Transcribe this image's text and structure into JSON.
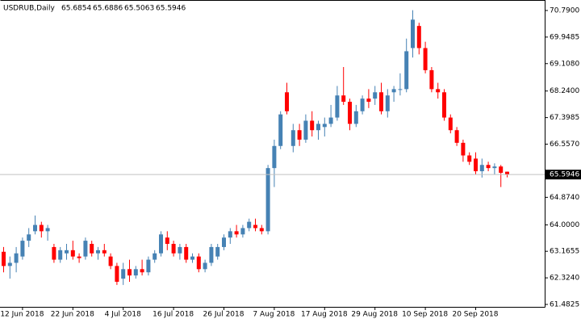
{
  "chart_data": {
    "type": "candlestick",
    "title": "USDRUB,Daily",
    "categories": [
      null,
      null,
      null,
      "12 Jun 2018",
      null,
      null,
      null,
      null,
      null,
      null,
      null,
      "22 Jun 2018",
      null,
      null,
      null,
      null,
      null,
      null,
      null,
      "4 Jul 2018",
      null,
      null,
      null,
      null,
      null,
      null,
      null,
      "16 Jul 2018",
      null,
      null,
      null,
      null,
      null,
      null,
      null,
      "26 Jul 2018",
      null,
      null,
      null,
      null,
      null,
      null,
      null,
      "7 Aug 2018",
      null,
      null,
      null,
      null,
      null,
      null,
      null,
      "17 Aug 2018",
      null,
      null,
      null,
      null,
      null,
      null,
      null,
      "29 Aug 2018",
      null,
      null,
      null,
      null,
      null,
      null,
      null,
      "10 Sep 2018",
      null,
      null,
      null,
      null,
      null,
      null,
      null,
      "20 Sep 2018",
      null,
      null,
      null,
      null,
      null
    ],
    "open": [
      63.15,
      62.7,
      62.8,
      63.0,
      63.5,
      63.8,
      64.0,
      63.8,
      63.3,
      62.9,
      63.1,
      63.2,
      63.0,
      63.0,
      63.4,
      63.1,
      63.2,
      63.0,
      62.7,
      62.3,
      62.6,
      62.4,
      62.6,
      62.5,
      62.9,
      63.1,
      63.6,
      63.4,
      63.1,
      63.3,
      62.9,
      63.0,
      62.6,
      62.8,
      63.0,
      63.3,
      63.6,
      63.8,
      63.7,
      63.9,
      64.0,
      63.9,
      63.8,
      65.8,
      66.5,
      68.2,
      66.5,
      67.0,
      66.7,
      67.3,
      67.0,
      67.1,
      67.2,
      67.4,
      68.1,
      67.9,
      67.2,
      67.6,
      68.0,
      68.0,
      68.2,
      67.6,
      68.2,
      68.3,
      68.3,
      69.6,
      70.3,
      69.6,
      68.9,
      68.3,
      68.2,
      67.4,
      67.0,
      66.6,
      66.2,
      66.1,
      65.7,
      65.9,
      65.8,
      65.85,
      65.6854
    ],
    "high": [
      63.3,
      63.0,
      63.3,
      63.6,
      63.9,
      64.3,
      64.1,
      64.0,
      63.4,
      63.3,
      63.4,
      63.5,
      63.1,
      63.6,
      63.5,
      63.3,
      63.4,
      63.1,
      62.8,
      62.8,
      62.9,
      62.7,
      62.9,
      63.0,
      63.2,
      63.8,
      63.8,
      63.5,
      63.4,
      63.4,
      63.1,
      63.1,
      62.9,
      63.4,
      63.4,
      63.7,
      63.9,
      64.0,
      64.0,
      64.2,
      64.2,
      64.0,
      65.9,
      66.7,
      67.6,
      68.5,
      67.2,
      67.2,
      67.5,
      67.6,
      67.3,
      67.4,
      67.8,
      68.4,
      69.0,
      68.0,
      67.8,
      68.1,
      68.3,
      68.4,
      68.5,
      68.3,
      68.4,
      68.8,
      69.9,
      70.8,
      70.4,
      69.8,
      69.0,
      68.5,
      68.3,
      67.5,
      67.1,
      66.7,
      66.3,
      66.3,
      66.1,
      66.0,
      65.95,
      65.9,
      65.6886
    ],
    "low": [
      62.5,
      62.3,
      62.5,
      62.9,
      63.3,
      63.7,
      63.6,
      63.5,
      62.8,
      62.8,
      62.9,
      62.9,
      62.8,
      62.9,
      63.0,
      62.9,
      63.0,
      62.6,
      62.1,
      62.1,
      62.2,
      62.3,
      62.4,
      62.4,
      62.8,
      63.0,
      63.2,
      63.0,
      62.9,
      62.8,
      62.8,
      62.5,
      62.5,
      62.7,
      62.9,
      63.2,
      63.4,
      63.6,
      63.6,
      63.8,
      63.8,
      63.7,
      63.7,
      65.2,
      66.4,
      67.5,
      66.3,
      66.5,
      66.6,
      66.8,
      66.7,
      66.8,
      67.1,
      67.3,
      67.8,
      67.0,
      67.1,
      67.5,
      67.7,
      67.8,
      67.5,
      67.4,
      67.9,
      68.1,
      68.2,
      69.3,
      69.4,
      68.8,
      68.2,
      68.0,
      67.3,
      66.9,
      66.5,
      66.0,
      65.9,
      65.6,
      65.5,
      65.7,
      65.6,
      65.2,
      65.5063
    ],
    "close": [
      62.7,
      62.8,
      63.1,
      63.5,
      63.7,
      64.0,
      63.8,
      63.9,
      62.9,
      63.2,
      63.2,
      63.0,
      62.95,
      63.5,
      63.1,
      63.2,
      63.1,
      62.7,
      62.2,
      62.6,
      62.4,
      62.6,
      62.5,
      62.9,
      63.1,
      63.7,
      63.4,
      63.1,
      63.3,
      62.9,
      63.0,
      62.6,
      62.8,
      63.3,
      63.3,
      63.6,
      63.8,
      63.7,
      63.9,
      64.1,
      63.9,
      63.8,
      65.8,
      66.5,
      67.5,
      67.6,
      67.0,
      66.7,
      67.3,
      67.0,
      67.2,
      67.2,
      67.4,
      68.1,
      67.9,
      67.2,
      67.6,
      68.0,
      67.9,
      68.2,
      67.6,
      68.1,
      68.3,
      68.3,
      69.5,
      70.5,
      69.6,
      68.9,
      68.3,
      68.2,
      67.4,
      67.0,
      66.6,
      66.2,
      66.0,
      65.7,
      65.9,
      65.8,
      65.85,
      65.65,
      65.5946
    ],
    "up_color": "#4682b4",
    "down_color": "#ff0000",
    "ylim": [
      61.406,
      71.122
    ],
    "yticks": [
      61.4825,
      {
        "value": 62.324,
        "label": "62.3240"
      },
      63.1655,
      {
        "value": 64.0,
        "label": "64.0000"
      },
      {
        "value": 64.874,
        "label": "64.8740"
      },
      {
        "value": 66.557,
        "label": "66.5570"
      },
      67.3985,
      {
        "value": 68.24,
        "label": "68.2400"
      },
      {
        "value": 69.108,
        "label": "69.1080"
      },
      69.9485,
      {
        "value": 70.79,
        "label": "70.7900"
      }
    ]
  }
}
